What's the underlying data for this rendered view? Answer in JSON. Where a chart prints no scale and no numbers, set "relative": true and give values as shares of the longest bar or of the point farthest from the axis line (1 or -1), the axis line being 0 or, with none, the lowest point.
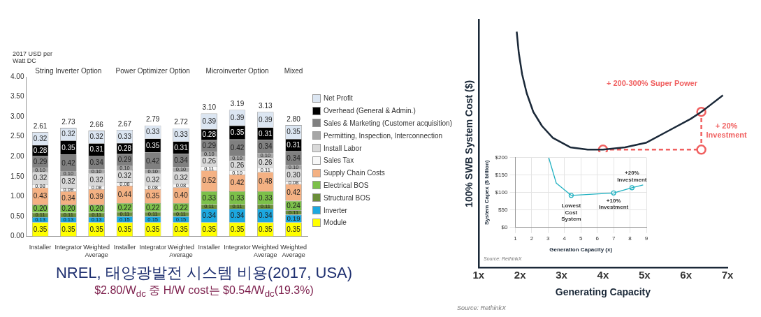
{
  "chart_data": [
    {
      "type": "bar",
      "title": "NREL, 태양광발전 시스템 비용(2017, USA)",
      "subtitle": "$2.80/W$_{dc}$ 중 H/W cost는 $0.54/W$_{dc}$(19.3%)",
      "ylabel": "2017 USD per Watt DC",
      "annotations": [
        "String Inverter Option",
        "Power Optimizer Option",
        "Microinverter Option",
        "Mixed"
      ],
      "categories": [
        "Installer",
        "Integrator",
        "Weighted Average",
        "Installer",
        "Integrator",
        "Weighted Average",
        "Installer",
        "Integrator",
        "Weighted Average",
        "Weighted Average"
      ],
      "stacked": true,
      "legend": "right",
      "grid": false,
      "ylim": [
        0,
        4
      ],
      "yticks": [
        {
          "value": 0,
          "label": "0.00"
        },
        {
          "value": 0.5,
          "label": "0.50"
        },
        {
          "value": 1,
          "label": "1.00"
        },
        {
          "value": 1.5,
          "label": "1.50"
        },
        {
          "value": 2,
          "label": "2.00"
        },
        {
          "value": 2.5,
          "label": "2.50"
        },
        {
          "value": 3,
          "label": "3.00"
        },
        {
          "value": 3.5,
          "label": "3.50"
        },
        {
          "value": 4,
          "label": "4.00"
        }
      ],
      "totals": [
        "2.61",
        "2.73",
        "2.66",
        "2.67",
        "2.79",
        "2.72",
        "3.10",
        "3.19",
        "3.13",
        "2.80"
      ],
      "series": [
        {
          "name": "Module",
          "color": "#ffff00",
          "values": [
            0.35,
            0.35,
            0.35,
            0.35,
            0.35,
            0.35,
            0.35,
            0.35,
            0.35,
            0.35
          ],
          "value_labels": [
            "0.35",
            "0.35",
            "0.35",
            "0.35",
            "0.35",
            "0.35",
            "0.35",
            "0.35",
            "0.35",
            "0.35"
          ]
        },
        {
          "name": "Inverter",
          "color": "#1ca8e0",
          "values": [
            0.13,
            0.13,
            0.13,
            0.15,
            0.15,
            0.15,
            0.34,
            0.34,
            0.34,
            0.19
          ],
          "value_labels": [
            "0.13",
            "0.13",
            "0.13",
            "0.15",
            "0.15",
            "0.15",
            "0.34",
            "0.34",
            "0.34",
            "0.19"
          ]
        },
        {
          "name": "Structural BOS",
          "color": "#6b8e3a",
          "values": [
            0.11,
            0.11,
            0.11,
            0.11,
            0.11,
            0.11,
            0.11,
            0.11,
            0.11,
            0.11
          ],
          "value_labels": [
            "0.11",
            "0.11",
            "0.11",
            "0.11",
            "0.11",
            "0.11",
            "0.11",
            "0.11",
            "0.11",
            "0.11"
          ]
        },
        {
          "name": "Electrical BOS",
          "color": "#7cc04a",
          "values": [
            0.2,
            0.2,
            0.2,
            0.22,
            0.22,
            0.22,
            0.33,
            0.33,
            0.33,
            0.24
          ],
          "value_labels": [
            "0.20",
            "0.20",
            "0.20",
            "0.22",
            "0.22",
            "0.22",
            "0.33",
            "0.33",
            "0.33",
            "0.24"
          ]
        },
        {
          "name": "Supply Chain Costs",
          "color": "#f4b183",
          "values": [
            0.43,
            0.34,
            0.39,
            0.44,
            0.35,
            0.4,
            0.52,
            0.42,
            0.48,
            0.42
          ],
          "value_labels": [
            "0.43",
            "0.34",
            "0.39",
            "0.44",
            "0.35",
            "0.40",
            "0.52",
            "0.42",
            "0.48",
            "0.42"
          ]
        },
        {
          "name": "Sales Tax",
          "color": "#f7f7f7",
          "values": [
            0.08,
            0.08,
            0.08,
            0.08,
            0.08,
            0.08,
            0.11,
            0.1,
            0.11,
            0.08
          ],
          "value_labels": [
            "0.08",
            "0.08",
            "0.08",
            "0.08",
            "0.08",
            "0.08",
            "0.11",
            "0.10",
            "0.11",
            "0.08"
          ]
        },
        {
          "name": "Install Labor",
          "color": "#d9d9d9",
          "values": [
            0.32,
            0.32,
            0.32,
            0.32,
            0.32,
            0.32,
            0.26,
            0.26,
            0.26,
            0.3
          ],
          "value_labels": [
            "0.32",
            "0.32",
            "0.32",
            "0.32",
            "0.32",
            "0.32",
            "0.26",
            "0.26",
            "0.26",
            "0.30"
          ]
        },
        {
          "name": "Permitting, Inspection, Interconnection",
          "color": "#a6a6a6",
          "values": [
            0.1,
            0.1,
            0.1,
            0.1,
            0.1,
            0.1,
            0.1,
            0.1,
            0.1,
            0.1
          ],
          "value_labels": [
            "0.10",
            "0.10",
            "0.10",
            "0.10",
            "0.10",
            "0.10",
            "0.10",
            "0.10",
            "0.10",
            "0.10"
          ]
        },
        {
          "name": "Sales & Marketing (Customer acquisition)",
          "color": "#808080",
          "values": [
            0.29,
            0.42,
            0.34,
            0.29,
            0.42,
            0.34,
            0.29,
            0.42,
            0.34,
            0.34
          ],
          "value_labels": [
            "0.29",
            "0.42",
            "0.34",
            "0.29",
            "0.42",
            "0.34",
            "0.29",
            "0.42",
            "0.34",
            "0.34"
          ]
        },
        {
          "name": "Overhead (General & Admin.)",
          "color": "#000000",
          "values": [
            0.28,
            0.35,
            0.31,
            0.28,
            0.35,
            0.31,
            0.28,
            0.35,
            0.31,
            0.31
          ],
          "value_labels": [
            "0.28",
            "0.35",
            "0.31",
            "0.28",
            "0.35",
            "0.31",
            "0.28",
            "0.35",
            "0.31",
            "0.31"
          ]
        },
        {
          "name": "Net Profit",
          "color": "#dce6f2",
          "values": [
            0.32,
            0.32,
            0.32,
            0.33,
            0.33,
            0.33,
            0.39,
            0.39,
            0.39,
            0.35
          ],
          "value_labels": [
            "0.32",
            "0.32",
            "0.32",
            "0.33",
            "0.33",
            "0.33",
            "0.39",
            "0.39",
            "0.39",
            "0.35"
          ]
        }
      ]
    },
    {
      "type": "line",
      "relative": true,
      "xlabel": "Generating Capacity",
      "ylabel": "100% SWB System Cost ($)",
      "legend": false,
      "grid": false,
      "marker": "none",
      "xlim": [
        1,
        7
      ],
      "xticks": [
        {
          "value": 1,
          "label": "1x"
        },
        {
          "value": 2,
          "label": "2x"
        },
        {
          "value": 3,
          "label": "3x"
        },
        {
          "value": 4,
          "label": "4x"
        },
        {
          "value": 5,
          "label": "5x"
        },
        {
          "value": 6,
          "label": "6x"
        },
        {
          "value": 7,
          "label": "7x"
        }
      ],
      "annotations": [
        "+ 200-300% Super Power",
        {
          "text": "+ 20% Investment",
          "x": 6.37,
          "y": 0.58
        },
        "Source: RethinkX"
      ],
      "series": [
        {
          "color": "#1a2838",
          "x": [
            1.92,
            1.97,
            2.05,
            2.16,
            2.32,
            2.53,
            2.79,
            3.21,
            3.63,
            4.0,
            4.53,
            5.05,
            5.58,
            6.11,
            6.37,
            6.89
          ],
          "values": [
            1,
            0.91,
            0.82,
            0.74,
            0.66,
            0.6,
            0.55,
            0.51,
            0.5,
            0.5,
            0.51,
            0.53,
            0.58,
            0.63,
            0.66,
            0.73
          ]
        },
        {
          "color": "#f06060",
          "type": "line",
          "line_style": "dashed",
          "marker": "circle",
          "x": [
            4.0,
            6.37,
            6.37
          ],
          "values": [
            0.5,
            0.5,
            0.66
          ]
        }
      ]
    },
    {
      "type": "line",
      "xlabel": "Generation Capacity (x)",
      "ylabel": "System Capex ($ billion)",
      "legend": false,
      "grid": true,
      "marker": "none",
      "xlim": [
        1,
        9
      ],
      "xticks": [
        1,
        2,
        3,
        4,
        5,
        6,
        7,
        8,
        9
      ],
      "ylim": [
        0,
        200
      ],
      "yticks": [
        {
          "value": 0,
          "label": "$0"
        },
        {
          "value": 50,
          "label": "$50"
        },
        {
          "value": 100,
          "label": "$100"
        },
        {
          "value": 150,
          "label": "$150"
        },
        {
          "value": 200,
          "label": "$200"
        }
      ],
      "annotations": [
        {
          "text": "Lowest Cost System",
          "x": 4.41,
          "y": 92
        },
        {
          "text": "+10% Investment",
          "x": 7.0,
          "y": 99
        },
        {
          "text": "+20% Investment",
          "x": 8.12,
          "y": 114
        },
        "Source: RethinkX"
      ],
      "series": [
        {
          "color": "#1fb0c0",
          "x": [
            3.04,
            3.5,
            4.41,
            7.0,
            8.12,
            8.8
          ],
          "values": [
            200,
            127,
            92,
            99,
            114,
            122
          ]
        },
        {
          "color": "#1fb0c0",
          "type": "scatter",
          "marker": "circle",
          "x": [
            4.41,
            7.0,
            8.12
          ],
          "values": [
            92,
            99,
            114
          ]
        }
      ]
    }
  ]
}
